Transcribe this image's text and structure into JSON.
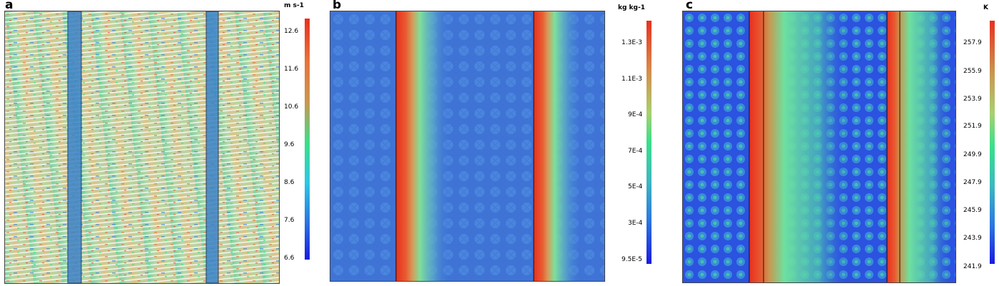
{
  "panels": [
    {
      "letter": "a",
      "unit": "m s-1",
      "ticks": [
        "12.6",
        "11.6",
        "10.6",
        "9.6",
        "8.6",
        "7.6",
        "6.6"
      ]
    },
    {
      "letter": "b",
      "unit": "kg kg-1",
      "ticks": [
        "1.3E-3",
        "1.1E-3",
        "9E-4",
        "7E-4",
        "5E-4",
        "3E-4",
        "9.5E-5"
      ]
    },
    {
      "letter": "c",
      "unit": "K",
      "ticks": [
        "257.9",
        "255.9",
        "253.9",
        "251.9",
        "249.9",
        "247.9",
        "245.9",
        "243.9",
        "241.9"
      ]
    }
  ],
  "colors": {
    "scale": [
      "#1a1ae0",
      "#2a78e0",
      "#2bc8e6",
      "#37e08a",
      "#a8d070",
      "#c89850",
      "#e8743a",
      "#e83020"
    ]
  }
}
